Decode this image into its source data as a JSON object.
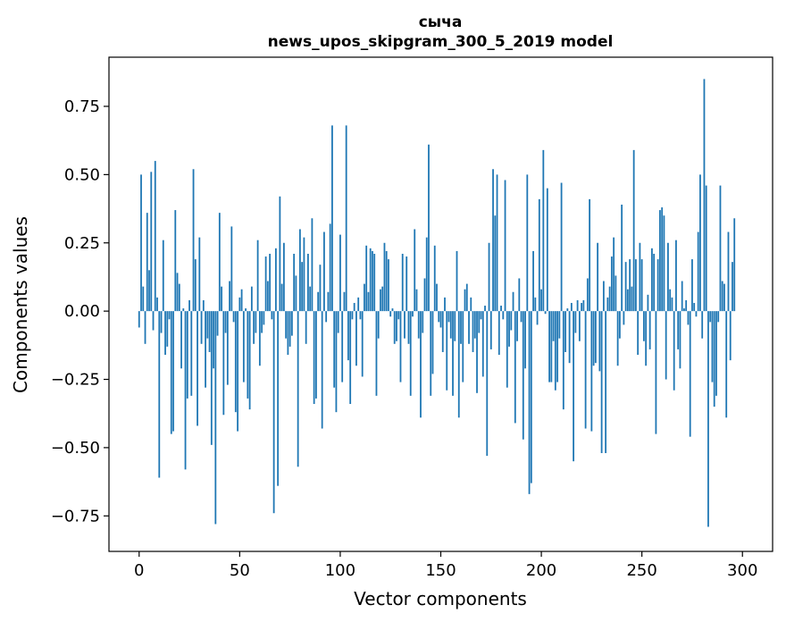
{
  "chart_data": {
    "type": "bar",
    "title": "сыча",
    "subtitle": "news_upos_skipgram_300_5_2019 model",
    "xlabel": "Vector components",
    "ylabel": "Components values",
    "xlim": [
      -15,
      315
    ],
    "ylim": [
      -0.88,
      0.93
    ],
    "x_ticks": [
      0,
      50,
      100,
      150,
      200,
      250,
      300
    ],
    "x_tick_labels": [
      "0",
      "50",
      "100",
      "150",
      "200",
      "250",
      "300"
    ],
    "y_ticks": [
      -0.75,
      -0.5,
      -0.25,
      0.0,
      0.25,
      0.5,
      0.75
    ],
    "y_tick_labels": [
      "−0.75",
      "−0.50",
      "−0.25",
      "0.00",
      "0.25",
      "0.50",
      "0.75"
    ],
    "bar_color": "#1f77b4",
    "grid": false,
    "values": [
      -0.06,
      0.5,
      0.09,
      -0.12,
      0.36,
      0.15,
      0.51,
      -0.07,
      0.55,
      0.05,
      -0.61,
      -0.08,
      0.26,
      -0.16,
      -0.13,
      -0.03,
      -0.45,
      -0.44,
      0.37,
      0.14,
      0.1,
      -0.21,
      0.01,
      -0.58,
      -0.32,
      0.04,
      -0.31,
      0.52,
      0.19,
      -0.42,
      0.27,
      -0.12,
      0.04,
      -0.28,
      -0.1,
      -0.15,
      -0.49,
      -0.21,
      -0.78,
      -0.09,
      0.36,
      0.09,
      -0.38,
      -0.08,
      -0.27,
      0.11,
      0.31,
      -0.04,
      -0.37,
      -0.44,
      0.05,
      0.08,
      -0.26,
      0.01,
      -0.32,
      -0.36,
      0.09,
      -0.12,
      -0.08,
      0.26,
      -0.2,
      -0.08,
      -0.05,
      0.2,
      0.11,
      0.21,
      -0.03,
      -0.74,
      0.23,
      -0.64,
      0.42,
      0.1,
      0.25,
      -0.1,
      -0.16,
      -0.13,
      -0.09,
      0.21,
      0.13,
      -0.57,
      0.3,
      0.18,
      0.27,
      -0.12,
      0.21,
      0.09,
      0.34,
      -0.34,
      -0.32,
      0.07,
      0.17,
      -0.43,
      0.29,
      -0.04,
      0.07,
      0.32,
      0.68,
      -0.28,
      -0.37,
      -0.08,
      0.28,
      -0.26,
      0.07,
      0.68,
      -0.18,
      -0.34,
      -0.03,
      0.03,
      -0.2,
      0.05,
      -0.03,
      -0.24,
      0.1,
      0.24,
      0.07,
      0.23,
      0.22,
      0.21,
      -0.31,
      -0.1,
      0.08,
      0.09,
      0.25,
      0.22,
      0.19,
      -0.02,
      0.01,
      -0.12,
      -0.11,
      -0.03,
      -0.26,
      0.21,
      -0.1,
      0.2,
      -0.12,
      -0.31,
      -0.02,
      0.3,
      0.08,
      -0.1,
      -0.39,
      -0.08,
      0.12,
      0.27,
      0.61,
      -0.31,
      -0.23,
      0.24,
      0.1,
      -0.04,
      -0.06,
      -0.15,
      0.05,
      -0.29,
      -0.04,
      -0.1,
      -0.31,
      -0.11,
      0.22,
      -0.39,
      -0.12,
      -0.26,
      0.08,
      0.1,
      -0.12,
      0.05,
      -0.15,
      -0.1,
      -0.3,
      -0.08,
      -0.03,
      -0.24,
      0.02,
      -0.53,
      0.25,
      -0.14,
      0.52,
      0.35,
      0.5,
      -0.16,
      0.02,
      -0.03,
      0.48,
      -0.28,
      -0.13,
      -0.07,
      0.07,
      -0.41,
      -0.11,
      0.12,
      -0.04,
      -0.47,
      -0.21,
      0.5,
      -0.67,
      -0.63,
      0.22,
      0.05,
      -0.05,
      0.41,
      0.08,
      0.59,
      -0.01,
      0.45,
      -0.26,
      -0.26,
      -0.11,
      -0.29,
      -0.26,
      -0.1,
      0.47,
      -0.36,
      -0.15,
      0.01,
      -0.19,
      0.03,
      -0.55,
      -0.08,
      0.04,
      -0.11,
      0.03,
      0.04,
      -0.43,
      0.12,
      0.41,
      -0.44,
      -0.2,
      -0.19,
      0.25,
      -0.22,
      -0.52,
      0.11,
      -0.52,
      0.05,
      0.09,
      0.2,
      0.27,
      0.13,
      -0.2,
      -0.1,
      0.39,
      -0.05,
      0.18,
      0.08,
      0.19,
      0.09,
      0.59,
      0.19,
      -0.16,
      0.25,
      0.19,
      -0.11,
      -0.2,
      0.06,
      -0.14,
      0.23,
      0.21,
      -0.45,
      0.19,
      0.37,
      0.38,
      0.35,
      -0.25,
      0.25,
      0.08,
      0.05,
      -0.29,
      0.26,
      -0.14,
      -0.21,
      0.11,
      0.01,
      0.04,
      -0.05,
      -0.46,
      0.19,
      0.03,
      -0.02,
      0.29,
      0.5,
      -0.1,
      0.85,
      0.46,
      -0.79,
      -0.04,
      -0.26,
      -0.35,
      -0.31,
      -0.04,
      0.46,
      0.11,
      0.1,
      -0.39,
      0.29,
      -0.18,
      0.18,
      0.34
    ]
  }
}
